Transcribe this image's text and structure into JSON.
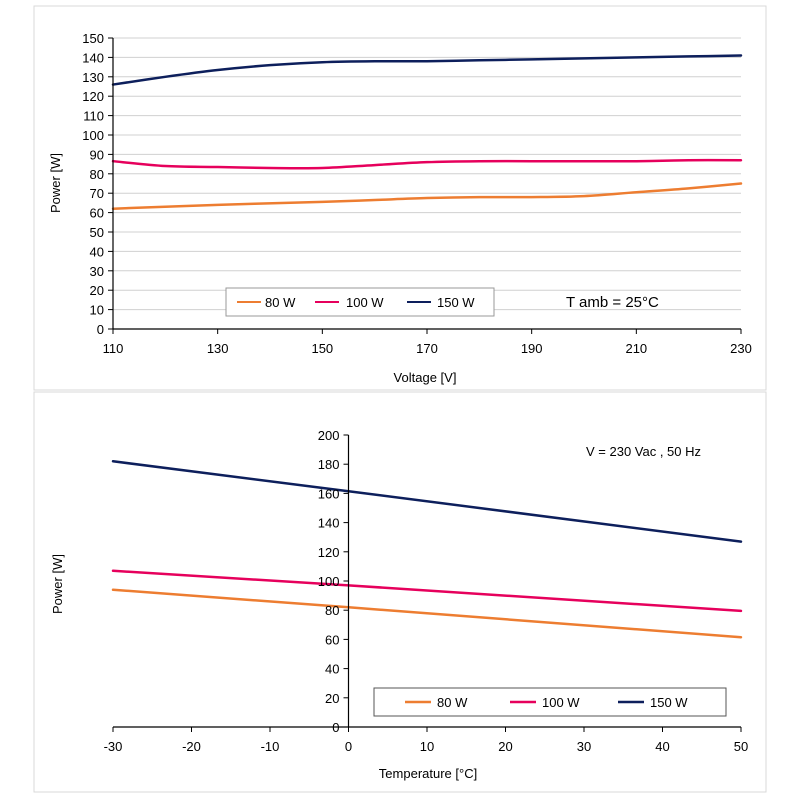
{
  "chart_data": [
    {
      "type": "line",
      "title": "",
      "xlabel": "Voltage [V]",
      "ylabel": "Power [W]",
      "xlim": [
        110,
        230
      ],
      "ylim": [
        0,
        150
      ],
      "x_ticks": [
        110,
        130,
        150,
        170,
        190,
        210,
        230
      ],
      "y_ticks": [
        0,
        10,
        20,
        30,
        40,
        50,
        60,
        70,
        80,
        90,
        100,
        110,
        120,
        130,
        140,
        150
      ],
      "grid": "horizontal",
      "legend_position": "bottom-left",
      "annotation": "T amb = 25°C",
      "series": [
        {
          "name": "80 W",
          "color": "#ED7D31",
          "x": [
            110,
            130,
            150,
            160,
            170,
            180,
            190,
            200,
            210,
            220,
            230
          ],
          "y": [
            62,
            64,
            65.5,
            66.5,
            67.5,
            68,
            68,
            68.5,
            70.5,
            72.5,
            75
          ]
        },
        {
          "name": "100 W",
          "color": "#E6005C",
          "x": [
            110,
            120,
            130,
            140,
            150,
            160,
            170,
            180,
            190,
            200,
            210,
            220,
            230
          ],
          "y": [
            86.5,
            84,
            83.5,
            83,
            83,
            84.5,
            86,
            86.5,
            86.5,
            86.5,
            86.5,
            87,
            87
          ]
        },
        {
          "name": "150 W",
          "color": "#0D1F5C",
          "x": [
            110,
            120,
            130,
            140,
            150,
            160,
            170,
            180,
            190,
            200,
            210,
            220,
            230
          ],
          "y": [
            126,
            130,
            133.5,
            136,
            137.5,
            138,
            138,
            138.5,
            139,
            139.5,
            140,
            140.5,
            141
          ]
        }
      ]
    },
    {
      "type": "line",
      "title": "",
      "xlabel": "Temperature [°C]",
      "ylabel": "Power [W]",
      "xlim": [
        -30,
        50
      ],
      "ylim": [
        0,
        200
      ],
      "x_ticks": [
        -30,
        -20,
        -10,
        0,
        10,
        20,
        30,
        40,
        50
      ],
      "y_ticks": [
        0,
        20,
        40,
        60,
        80,
        100,
        120,
        140,
        160,
        180,
        200
      ],
      "grid": "off",
      "legend_position": "bottom-right",
      "annotation": "V = 230 Vac , 50 Hz",
      "series": [
        {
          "name": "80 W",
          "color": "#ED7D31",
          "x": [
            -30,
            0,
            50
          ],
          "y": [
            94,
            82,
            61.5
          ]
        },
        {
          "name": "100 W",
          "color": "#E6005C",
          "x": [
            -30,
            0,
            50
          ],
          "y": [
            107,
            97,
            79.5
          ]
        },
        {
          "name": "150 W",
          "color": "#0D1F5C",
          "x": [
            -30,
            0,
            50
          ],
          "y": [
            182,
            161.5,
            127
          ]
        }
      ]
    }
  ]
}
